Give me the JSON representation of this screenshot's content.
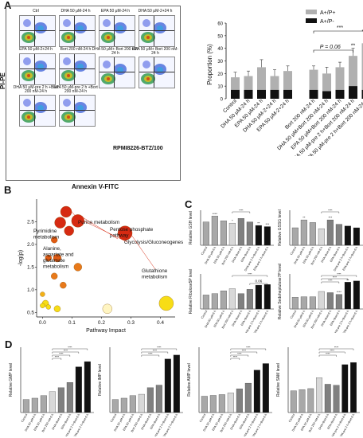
{
  "panels": {
    "A": "A",
    "B": "B",
    "C": "C",
    "D": "D"
  },
  "panelA": {
    "flow_titles": [
      "Ctrl",
      "DHA 50 μM-24 h",
      "EPA 50 μM-24 h",
      "DHA 50 μM-2+24 h",
      "EPA 50 μM-2+24 h",
      "Bort 200 nM-24 h",
      "DHA 50 μM+ Bort 200 nM-24 h",
      "EPA 50 μM+ Bort 200 nM-24 h",
      "DHA 50 μM-pre 2 h +Bort 200 nM-24 h",
      "EPA 50 μM-pre 2 h +Bort 200 nM-24 h"
    ],
    "y_axis": "PI-PE",
    "x_axis": "Annexin V-FITC",
    "cell_line": "RPMI8226-BTZ/100",
    "bar": {
      "ylabel": "Proportion (%)",
      "legend": [
        "A+/P+",
        "A+/P-"
      ],
      "categories": [
        "Control",
        "DHA 50 μM-24 h",
        "EPA 50 μM-24 h",
        "DHA 50 μM-2+24 h",
        "EPA 50 μM-2+24 h",
        "Bort 200 nM-24 h",
        "DHA 50 μM+Bort 200 nM-24 h",
        "EPA 50 μM+Bort 200 nM-24 h",
        "DHA 50 μM-pre 2 h+Bort 200 nM-24 h",
        "EPA 50 μM-pre 2 h+Bort 200 nM-24 h"
      ],
      "yticks": [
        "0",
        "10",
        "20",
        "30",
        "40",
        "50",
        "60"
      ],
      "annotations": {
        "p": "P = 0.06",
        "s1": "***",
        "s2": "****",
        "s3": "**"
      }
    }
  },
  "panelB": {
    "ylabel": "-log(p)",
    "xlabel": "Pathway Impact",
    "xticks": [
      "0.0",
      "0.1",
      "0.2",
      "0.3",
      "0.4"
    ],
    "yticks": [
      "0.5",
      "1.0",
      "1.5",
      "2.0",
      "2.5"
    ],
    "labels": [
      "Purine metabolism",
      "Pyrimidine metabolism",
      "Pentose phosphate pathway",
      "Glycolysis/Gluconeogenesis",
      "Alanine, aspartate and glutamate metabolism",
      "Glutathione metabolism"
    ]
  },
  "panelC": {
    "ylabels": [
      "Relative GSH level",
      "Relative GSSG level",
      "Relative Ribulose5P level",
      "Relative Sedoheptulose7P level"
    ],
    "value_label": "0.06"
  },
  "panelD": {
    "ylabels": [
      "Relative GMP level",
      "Relative IMP level",
      "Relative AMP level",
      "Relative SAM level"
    ]
  },
  "groups": [
    "Control",
    "DHA 50 μM-6 h",
    "EPA 50 μM-6 h",
    "Bort 200 nM-6 h",
    "DHA+Bort-6 h",
    "EPA+Bort-6 h",
    "DHA-pre 2 h+Bort-6 h",
    "EPA-pre 2 h+Bort-6 h"
  ],
  "chart_data": [
    {
      "type": "bar",
      "id": "A-proportion",
      "categories": [
        "Control",
        "DHA 50 μM-24 h",
        "EPA 50 μM-24 h",
        "DHA 50 μM-2+24 h",
        "EPA 50 μM-2+24 h",
        "Bort 200 nM-24 h",
        "DHA 50 μM+Bort 200 nM-24 h",
        "EPA 50 μM+Bort 200 nM-24 h",
        "DHA 50 μM-pre 2 h+Bort 200 nM-24 h",
        "EPA 50 μM-pre 2 h+Bort 200 nM-24 h"
      ],
      "series": [
        {
          "name": "A+/P+",
          "values": [
            17,
            18,
            25,
            18,
            22,
            23,
            20,
            25,
            34,
            44
          ]
        },
        {
          "name": "A+/P-",
          "values": [
            7,
            7,
            7,
            7,
            7,
            7,
            6,
            7,
            10,
            7
          ]
        }
      ],
      "ylabel": "Proportion (%)",
      "ylim": [
        0,
        60
      ]
    },
    {
      "type": "scatter",
      "id": "B-pathway",
      "points": [
        {
          "x": 0.08,
          "y": 2.72,
          "r": 7
        },
        {
          "x": 0.06,
          "y": 2.48,
          "r": 7
        },
        {
          "x": 0.12,
          "y": 2.52,
          "r": 8
        },
        {
          "x": 0.09,
          "y": 2.3,
          "r": 6
        },
        {
          "x": 0.28,
          "y": 2.25,
          "r": 9
        },
        {
          "x": 0.04,
          "y": 2.1,
          "r": 4
        },
        {
          "x": 0.02,
          "y": 1.7,
          "r": 4
        },
        {
          "x": 0.05,
          "y": 1.7,
          "r": 5
        },
        {
          "x": 0.12,
          "y": 1.5,
          "r": 5
        },
        {
          "x": 0.04,
          "y": 1.3,
          "r": 4
        },
        {
          "x": 0.07,
          "y": 1.1,
          "r": 4
        },
        {
          "x": 0.0,
          "y": 0.9,
          "r": 3
        },
        {
          "x": 0.01,
          "y": 0.7,
          "r": 4
        },
        {
          "x": 0.0,
          "y": 0.65,
          "r": 3
        },
        {
          "x": 0.02,
          "y": 0.62,
          "r": 3
        },
        {
          "x": 0.05,
          "y": 0.58,
          "r": 4
        },
        {
          "x": 0.22,
          "y": 0.58,
          "r": 6
        },
        {
          "x": 0.42,
          "y": 0.7,
          "r": 9
        }
      ],
      "xlabel": "Pathway Impact",
      "ylabel": "-log(p)",
      "xlim": [
        -0.02,
        0.45
      ],
      "ylim": [
        0.4,
        3.0
      ]
    },
    {
      "type": "bar",
      "id": "C-GSH",
      "values": [
        1.0,
        1.25,
        1.05,
        0.95,
        1.15,
        1.0,
        0.85,
        0.8
      ],
      "ylim": [
        0,
        1.5
      ]
    },
    {
      "type": "bar",
      "id": "C-GSSG",
      "values": [
        1.0,
        1.45,
        1.3,
        0.95,
        1.45,
        1.2,
        1.1,
        1.0
      ],
      "ylim": [
        0,
        2.0
      ]
    },
    {
      "type": "bar",
      "id": "C-Ribulose5P",
      "values": [
        1.0,
        1.1,
        1.3,
        1.45,
        1.1,
        1.4,
        1.7,
        1.75
      ],
      "ylim": [
        0,
        2.5
      ]
    },
    {
      "type": "bar",
      "id": "C-Sedoheptulose7P",
      "values": [
        1.0,
        1.05,
        1.05,
        1.5,
        1.4,
        1.25,
        2.3,
        2.4
      ],
      "ylim": [
        0,
        3.0
      ]
    },
    {
      "type": "bar",
      "id": "D-GMP",
      "values": [
        1.0,
        1.1,
        1.3,
        1.6,
        1.9,
        2.3,
        3.5,
        3.9
      ],
      "ylim": [
        0,
        5
      ]
    },
    {
      "type": "bar",
      "id": "D-IMP",
      "values": [
        1.0,
        1.1,
        1.3,
        1.4,
        1.9,
        2.1,
        4.1,
        4.4
      ],
      "ylim": [
        0,
        5
      ]
    },
    {
      "type": "bar",
      "id": "D-AMP",
      "values": [
        1.0,
        1.05,
        1.1,
        1.2,
        1.45,
        1.8,
        2.6,
        3.0
      ],
      "ylim": [
        0,
        4
      ]
    },
    {
      "type": "bar",
      "id": "D-SAM",
      "values": [
        1.0,
        1.05,
        1.1,
        1.6,
        1.3,
        1.25,
        2.2,
        2.3
      ],
      "ylim": [
        0,
        3
      ]
    }
  ],
  "colors": {
    "bar_light": "#b0b0b0",
    "bar_dark": "#111111",
    "bar_gray": "#808080",
    "red": "#d62a12",
    "orange": "#e8791a",
    "yellow": "#f7dd16"
  }
}
